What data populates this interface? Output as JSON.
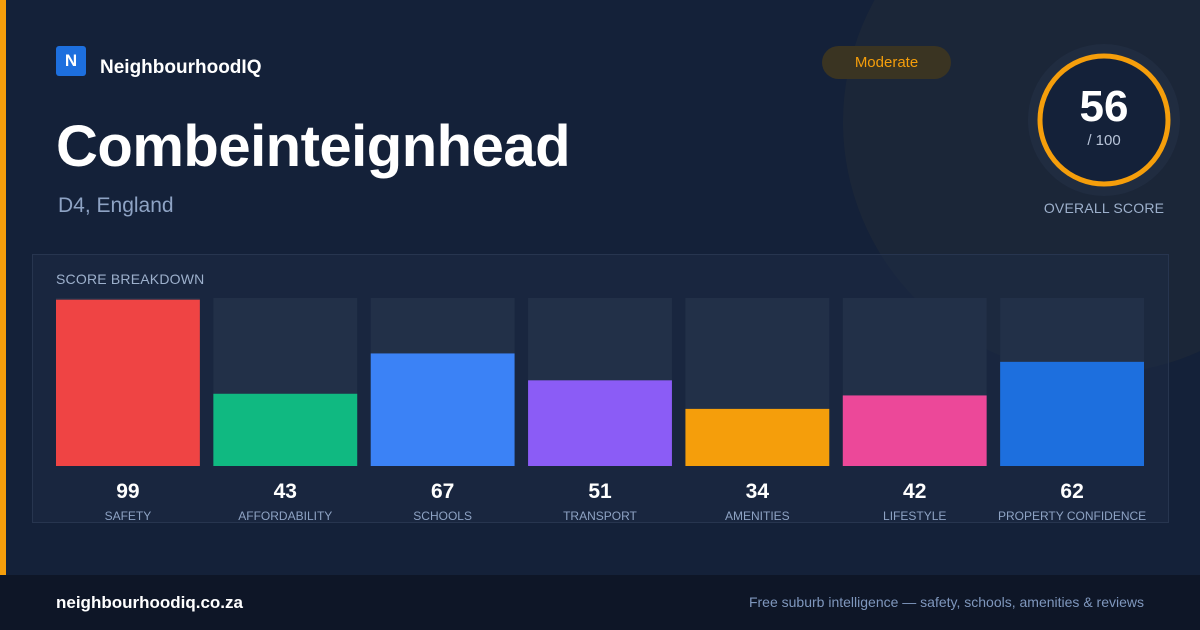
{
  "brand": {
    "logo_letter": "N",
    "name": "NeighbourhoodIQ"
  },
  "badge": {
    "label": "Moderate",
    "color": "#f59e0b"
  },
  "location": {
    "name": "Combeinteignhead",
    "region": "D4, England"
  },
  "overall": {
    "score": "56",
    "max": "/ 100",
    "label": "OVERALL SCORE",
    "value": 56,
    "ring_color": "#f59e0b"
  },
  "breakdown": {
    "title": "SCORE BREAKDOWN"
  },
  "chart_data": {
    "type": "bar",
    "title": "SCORE BREAKDOWN",
    "ylim": [
      0,
      100
    ],
    "categories": [
      "SAFETY",
      "AFFORDABILITY",
      "SCHOOLS",
      "TRANSPORT",
      "AMENITIES",
      "LIFESTYLE",
      "PROPERTY CONFIDENCE"
    ],
    "values": [
      99,
      43,
      67,
      51,
      34,
      42,
      62
    ],
    "colors": [
      "#ef4444",
      "#10b981",
      "#3b82f6",
      "#8b5cf6",
      "#f59e0b",
      "#ec4899",
      "#1d6fde"
    ]
  },
  "footer": {
    "url": "neighbourhoodiq.co.za",
    "tagline": "Free suburb intelligence — safety, schools, amenities & reviews"
  },
  "theme": {
    "accent": "#f59e0b",
    "brand_blue": "#1d6fde"
  }
}
